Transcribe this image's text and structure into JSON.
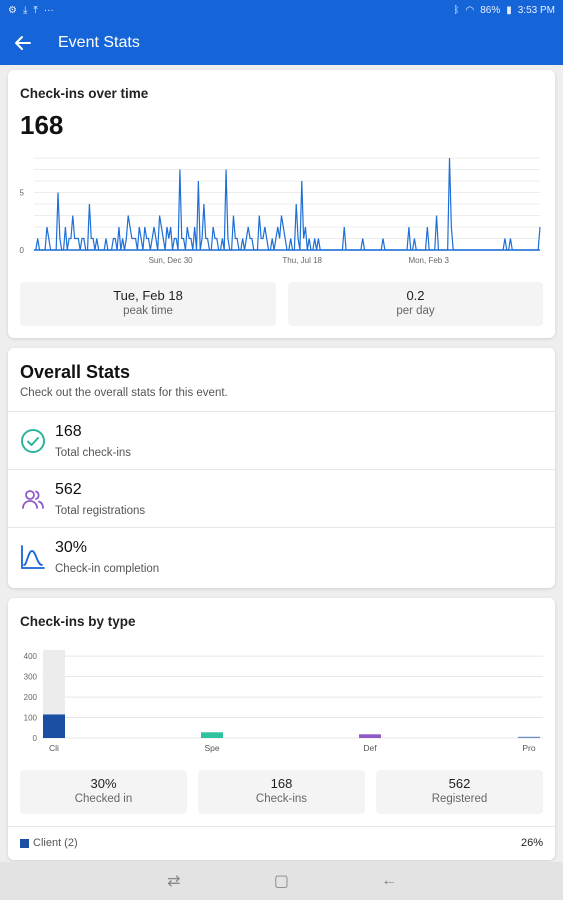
{
  "status_bar": {
    "left_icons": [
      "gear-icon",
      "download-icon",
      "upload-icon",
      "more-icon"
    ],
    "battery": "86%",
    "time": "3:53 PM"
  },
  "app_bar": {
    "title": "Event Stats",
    "back_icon": "arrow-left-icon"
  },
  "checkins_over_time": {
    "title": "Check-ins over time",
    "total": "168",
    "peak_value": "Tue, Feb 18",
    "peak_label": "peak time",
    "per_day_value": "0.2",
    "per_day_label": "per day"
  },
  "overall": {
    "title": "Overall Stats",
    "subtitle": "Check out the overall stats for this event.",
    "rows": [
      {
        "value": "168",
        "label": "Total check-ins",
        "icon": "check-circle-icon"
      },
      {
        "value": "562",
        "label": "Total registrations",
        "icon": "users-icon"
      },
      {
        "value": "30%",
        "label": "Check-in completion",
        "icon": "bell-curve-icon"
      }
    ]
  },
  "by_type": {
    "title": "Check-ins by type",
    "boxes": [
      {
        "value": "30%",
        "label": "Checked in"
      },
      {
        "value": "168",
        "label": "Check-ins"
      },
      {
        "value": "562",
        "label": "Registered"
      }
    ],
    "legend": {
      "label": "Client (2)",
      "pct": "26%"
    }
  },
  "colors": {
    "primary": "#1565d8",
    "line": "#1e6fd6",
    "client": "#1a4fa3",
    "speaker": "#2ec4a0",
    "default": "#8e5ac8",
    "pro": "#6f8fc4",
    "check_icon": "#2bb59a",
    "users_icon": "#8e5ac8",
    "curve_icon": "#1565d8"
  },
  "nav": [
    "recent-apps-icon",
    "home-icon",
    "back-icon"
  ],
  "chart_data": [
    {
      "type": "line",
      "title": "Check-ins over time",
      "x_ticks": [
        "Sun, Dec 30",
        "Thu, Jul 18",
        "Mon, Feb 3"
      ],
      "y_ticks": [
        0,
        5
      ],
      "ylim": [
        0,
        8
      ],
      "grid": true,
      "series": [
        {
          "values": [
            0,
            0,
            1,
            0,
            0,
            0,
            0,
            2,
            1,
            0,
            0,
            0,
            0,
            5,
            1,
            0,
            0,
            2,
            0,
            1,
            1,
            3,
            1,
            1,
            1,
            0,
            1,
            1,
            0,
            0,
            4,
            1,
            1,
            0,
            1,
            0,
            0,
            0,
            0,
            1,
            0,
            0,
            0,
            1,
            1,
            0,
            2,
            0,
            1,
            0,
            1,
            3,
            2,
            1,
            1,
            1,
            0,
            2,
            1,
            0,
            2,
            1,
            1,
            0,
            1,
            2,
            1,
            0,
            3,
            2,
            1,
            0,
            2,
            1,
            2,
            0,
            1,
            1,
            0,
            7,
            1,
            1,
            0,
            2,
            1,
            1,
            0,
            2,
            0,
            6,
            0,
            1,
            4,
            1,
            1,
            0,
            0,
            2,
            1,
            1,
            0,
            0,
            1,
            0,
            7,
            1,
            0,
            0,
            3,
            1,
            1,
            0,
            0,
            1,
            0,
            1,
            2,
            1,
            1,
            0,
            0,
            0,
            3,
            1,
            1,
            2,
            1,
            0,
            0,
            1,
            0,
            1,
            2,
            1,
            3,
            2,
            1,
            0,
            0,
            1,
            0,
            0,
            4,
            1,
            0,
            6,
            1,
            2,
            0,
            1,
            0,
            0,
            1,
            0,
            1,
            0,
            0,
            0,
            0,
            0,
            0,
            0,
            0,
            0,
            0,
            0,
            0,
            0,
            2,
            0,
            0,
            0,
            0,
            0,
            0,
            0,
            0,
            0,
            1,
            0,
            0,
            0,
            0,
            0,
            0,
            0,
            0,
            0,
            0,
            1,
            0,
            0,
            0,
            0,
            0,
            0,
            0,
            0,
            0,
            0,
            0,
            0,
            0,
            2,
            0,
            0,
            1,
            0,
            0,
            0,
            0,
            0,
            0,
            2,
            0,
            0,
            0,
            0,
            3,
            0,
            0,
            0,
            0,
            0,
            0,
            8,
            2,
            0,
            0,
            0,
            0,
            0,
            0,
            0,
            0,
            0,
            0,
            0,
            0,
            0,
            0,
            0,
            0,
            0,
            0,
            0,
            0,
            0,
            0,
            0,
            0,
            0,
            0,
            0,
            0,
            1,
            0,
            0,
            1,
            0,
            0,
            0,
            0,
            0,
            0,
            0,
            0,
            0,
            0,
            0,
            0,
            0,
            0,
            0,
            2
          ]
        }
      ]
    },
    {
      "type": "bar",
      "title": "Check-ins by type",
      "categories": [
        "Cli",
        "Spe",
        "Def",
        "Pro"
      ],
      "y_ticks": [
        0,
        100,
        200,
        300,
        400
      ],
      "ylim": [
        0,
        430
      ],
      "series": [
        {
          "name": "Registered",
          "values": [
            430,
            0,
            0,
            0
          ]
        },
        {
          "name": "Checked in",
          "values": [
            115,
            28,
            18,
            6
          ]
        }
      ]
    }
  ]
}
